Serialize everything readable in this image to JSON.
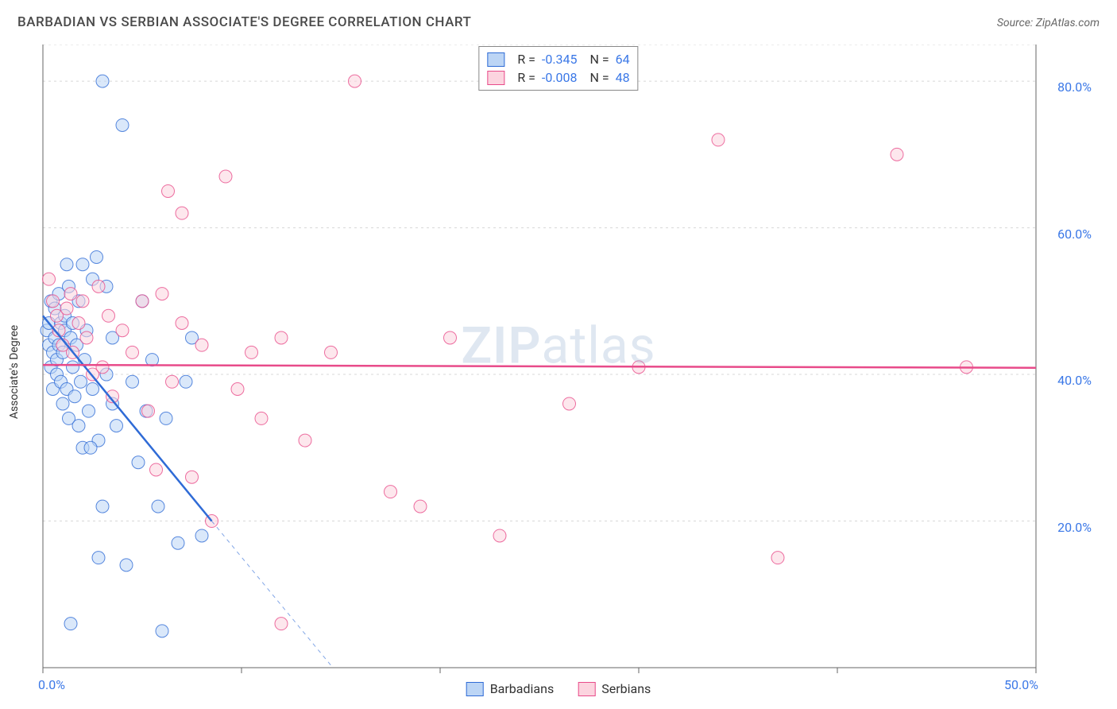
{
  "header": {
    "title": "BARBADIAN VS SERBIAN ASSOCIATE'S DEGREE CORRELATION CHART",
    "source": "Source: ZipAtlas.com"
  },
  "watermark": {
    "zip": "ZIP",
    "atlas": "atlas"
  },
  "chart": {
    "type": "scatter",
    "background_color": "#ffffff",
    "grid_color": "#d8d8d8",
    "axis_color": "#666666",
    "value_color": "#3b78e7",
    "yaxis_label": "Associate's Degree",
    "xlim": [
      0,
      50
    ],
    "ylim": [
      0,
      85
    ],
    "x_ticks": [
      0,
      10,
      20,
      30,
      40,
      50
    ],
    "x_tick_labels": [
      "0.0%",
      "",
      "",
      "",
      "",
      "50.0%"
    ],
    "y_ticks": [
      20,
      40,
      60,
      80
    ],
    "y_tick_labels": [
      "20.0%",
      "40.0%",
      "60.0%",
      "80.0%"
    ],
    "marker_radius": 8,
    "marker_opacity": 0.55,
    "line_width": 2.5,
    "dash_width": 1,
    "series": [
      {
        "name": "Barbadians",
        "label": "Barbadians",
        "fill": "#bcd5f5",
        "stroke": "#2f6bd6",
        "R": "-0.345",
        "N": "64",
        "trend_solid": {
          "x1": 0,
          "y1": 48,
          "x2": 8.5,
          "y2": 20
        },
        "trend_dash": {
          "x1": 8.5,
          "y1": 20,
          "x2": 14.6,
          "y2": 0
        },
        "points": [
          [
            0.2,
            46
          ],
          [
            0.3,
            44
          ],
          [
            0.3,
            47
          ],
          [
            0.4,
            50
          ],
          [
            0.4,
            41
          ],
          [
            0.5,
            43
          ],
          [
            0.5,
            38
          ],
          [
            0.6,
            45
          ],
          [
            0.6,
            49
          ],
          [
            0.7,
            42
          ],
          [
            0.7,
            40
          ],
          [
            0.8,
            44
          ],
          [
            0.8,
            51
          ],
          [
            0.9,
            47
          ],
          [
            0.9,
            39
          ],
          [
            1.0,
            43
          ],
          [
            1.0,
            36
          ],
          [
            1.1,
            46
          ],
          [
            1.1,
            48
          ],
          [
            1.2,
            55
          ],
          [
            1.2,
            38
          ],
          [
            1.3,
            52
          ],
          [
            1.3,
            34
          ],
          [
            1.4,
            45
          ],
          [
            1.5,
            41
          ],
          [
            1.5,
            47
          ],
          [
            1.6,
            37
          ],
          [
            1.7,
            44
          ],
          [
            1.8,
            50
          ],
          [
            1.8,
            33
          ],
          [
            1.9,
            39
          ],
          [
            2.0,
            55
          ],
          [
            2.0,
            30
          ],
          [
            2.1,
            42
          ],
          [
            2.2,
            46
          ],
          [
            2.3,
            35
          ],
          [
            2.5,
            53
          ],
          [
            2.5,
            38
          ],
          [
            2.7,
            56
          ],
          [
            2.8,
            31
          ],
          [
            2.8,
            15
          ],
          [
            3.0,
            80
          ],
          [
            3.0,
            22
          ],
          [
            3.2,
            40
          ],
          [
            3.2,
            52
          ],
          [
            3.5,
            36
          ],
          [
            3.5,
            45
          ],
          [
            3.7,
            33
          ],
          [
            4.0,
            74
          ],
          [
            4.2,
            14
          ],
          [
            4.5,
            39
          ],
          [
            4.8,
            28
          ],
          [
            5.0,
            50
          ],
          [
            5.2,
            35
          ],
          [
            5.5,
            42
          ],
          [
            5.8,
            22
          ],
          [
            6.0,
            5
          ],
          [
            6.2,
            34
          ],
          [
            6.8,
            17
          ],
          [
            7.2,
            39
          ],
          [
            7.5,
            45
          ],
          [
            8.0,
            18
          ],
          [
            1.4,
            6
          ],
          [
            2.4,
            30
          ]
        ]
      },
      {
        "name": "Serbians",
        "label": "Serbians",
        "fill": "#fcd4df",
        "stroke": "#e84b8a",
        "R": "-0.008",
        "N": "48",
        "trend_solid": {
          "x1": 0,
          "y1": 41.3,
          "x2": 50,
          "y2": 40.9
        },
        "trend_dash": null,
        "points": [
          [
            0.3,
            53
          ],
          [
            0.5,
            50
          ],
          [
            0.7,
            48
          ],
          [
            0.8,
            46
          ],
          [
            1.0,
            44
          ],
          [
            1.2,
            49
          ],
          [
            1.4,
            51
          ],
          [
            1.5,
            43
          ],
          [
            1.8,
            47
          ],
          [
            2.0,
            50
          ],
          [
            2.2,
            45
          ],
          [
            2.5,
            40
          ],
          [
            2.8,
            52
          ],
          [
            3.0,
            41
          ],
          [
            3.3,
            48
          ],
          [
            3.5,
            37
          ],
          [
            4.0,
            46
          ],
          [
            4.5,
            43
          ],
          [
            5.0,
            50
          ],
          [
            5.3,
            35
          ],
          [
            5.7,
            27
          ],
          [
            6.0,
            51
          ],
          [
            6.3,
            65
          ],
          [
            6.5,
            39
          ],
          [
            7.0,
            47
          ],
          [
            7.0,
            62
          ],
          [
            7.5,
            26
          ],
          [
            8.0,
            44
          ],
          [
            8.5,
            20
          ],
          [
            9.2,
            67
          ],
          [
            9.8,
            38
          ],
          [
            10.5,
            43
          ],
          [
            11.0,
            34
          ],
          [
            12.0,
            45
          ],
          [
            12.0,
            6
          ],
          [
            13.2,
            31
          ],
          [
            14.5,
            43
          ],
          [
            15.7,
            80
          ],
          [
            17.5,
            24
          ],
          [
            19.0,
            22
          ],
          [
            20.5,
            45
          ],
          [
            23.0,
            18
          ],
          [
            26.5,
            36
          ],
          [
            30.0,
            41
          ],
          [
            34.0,
            72
          ],
          [
            37.0,
            15
          ],
          [
            43.0,
            70
          ],
          [
            46.5,
            41
          ]
        ]
      }
    ]
  }
}
